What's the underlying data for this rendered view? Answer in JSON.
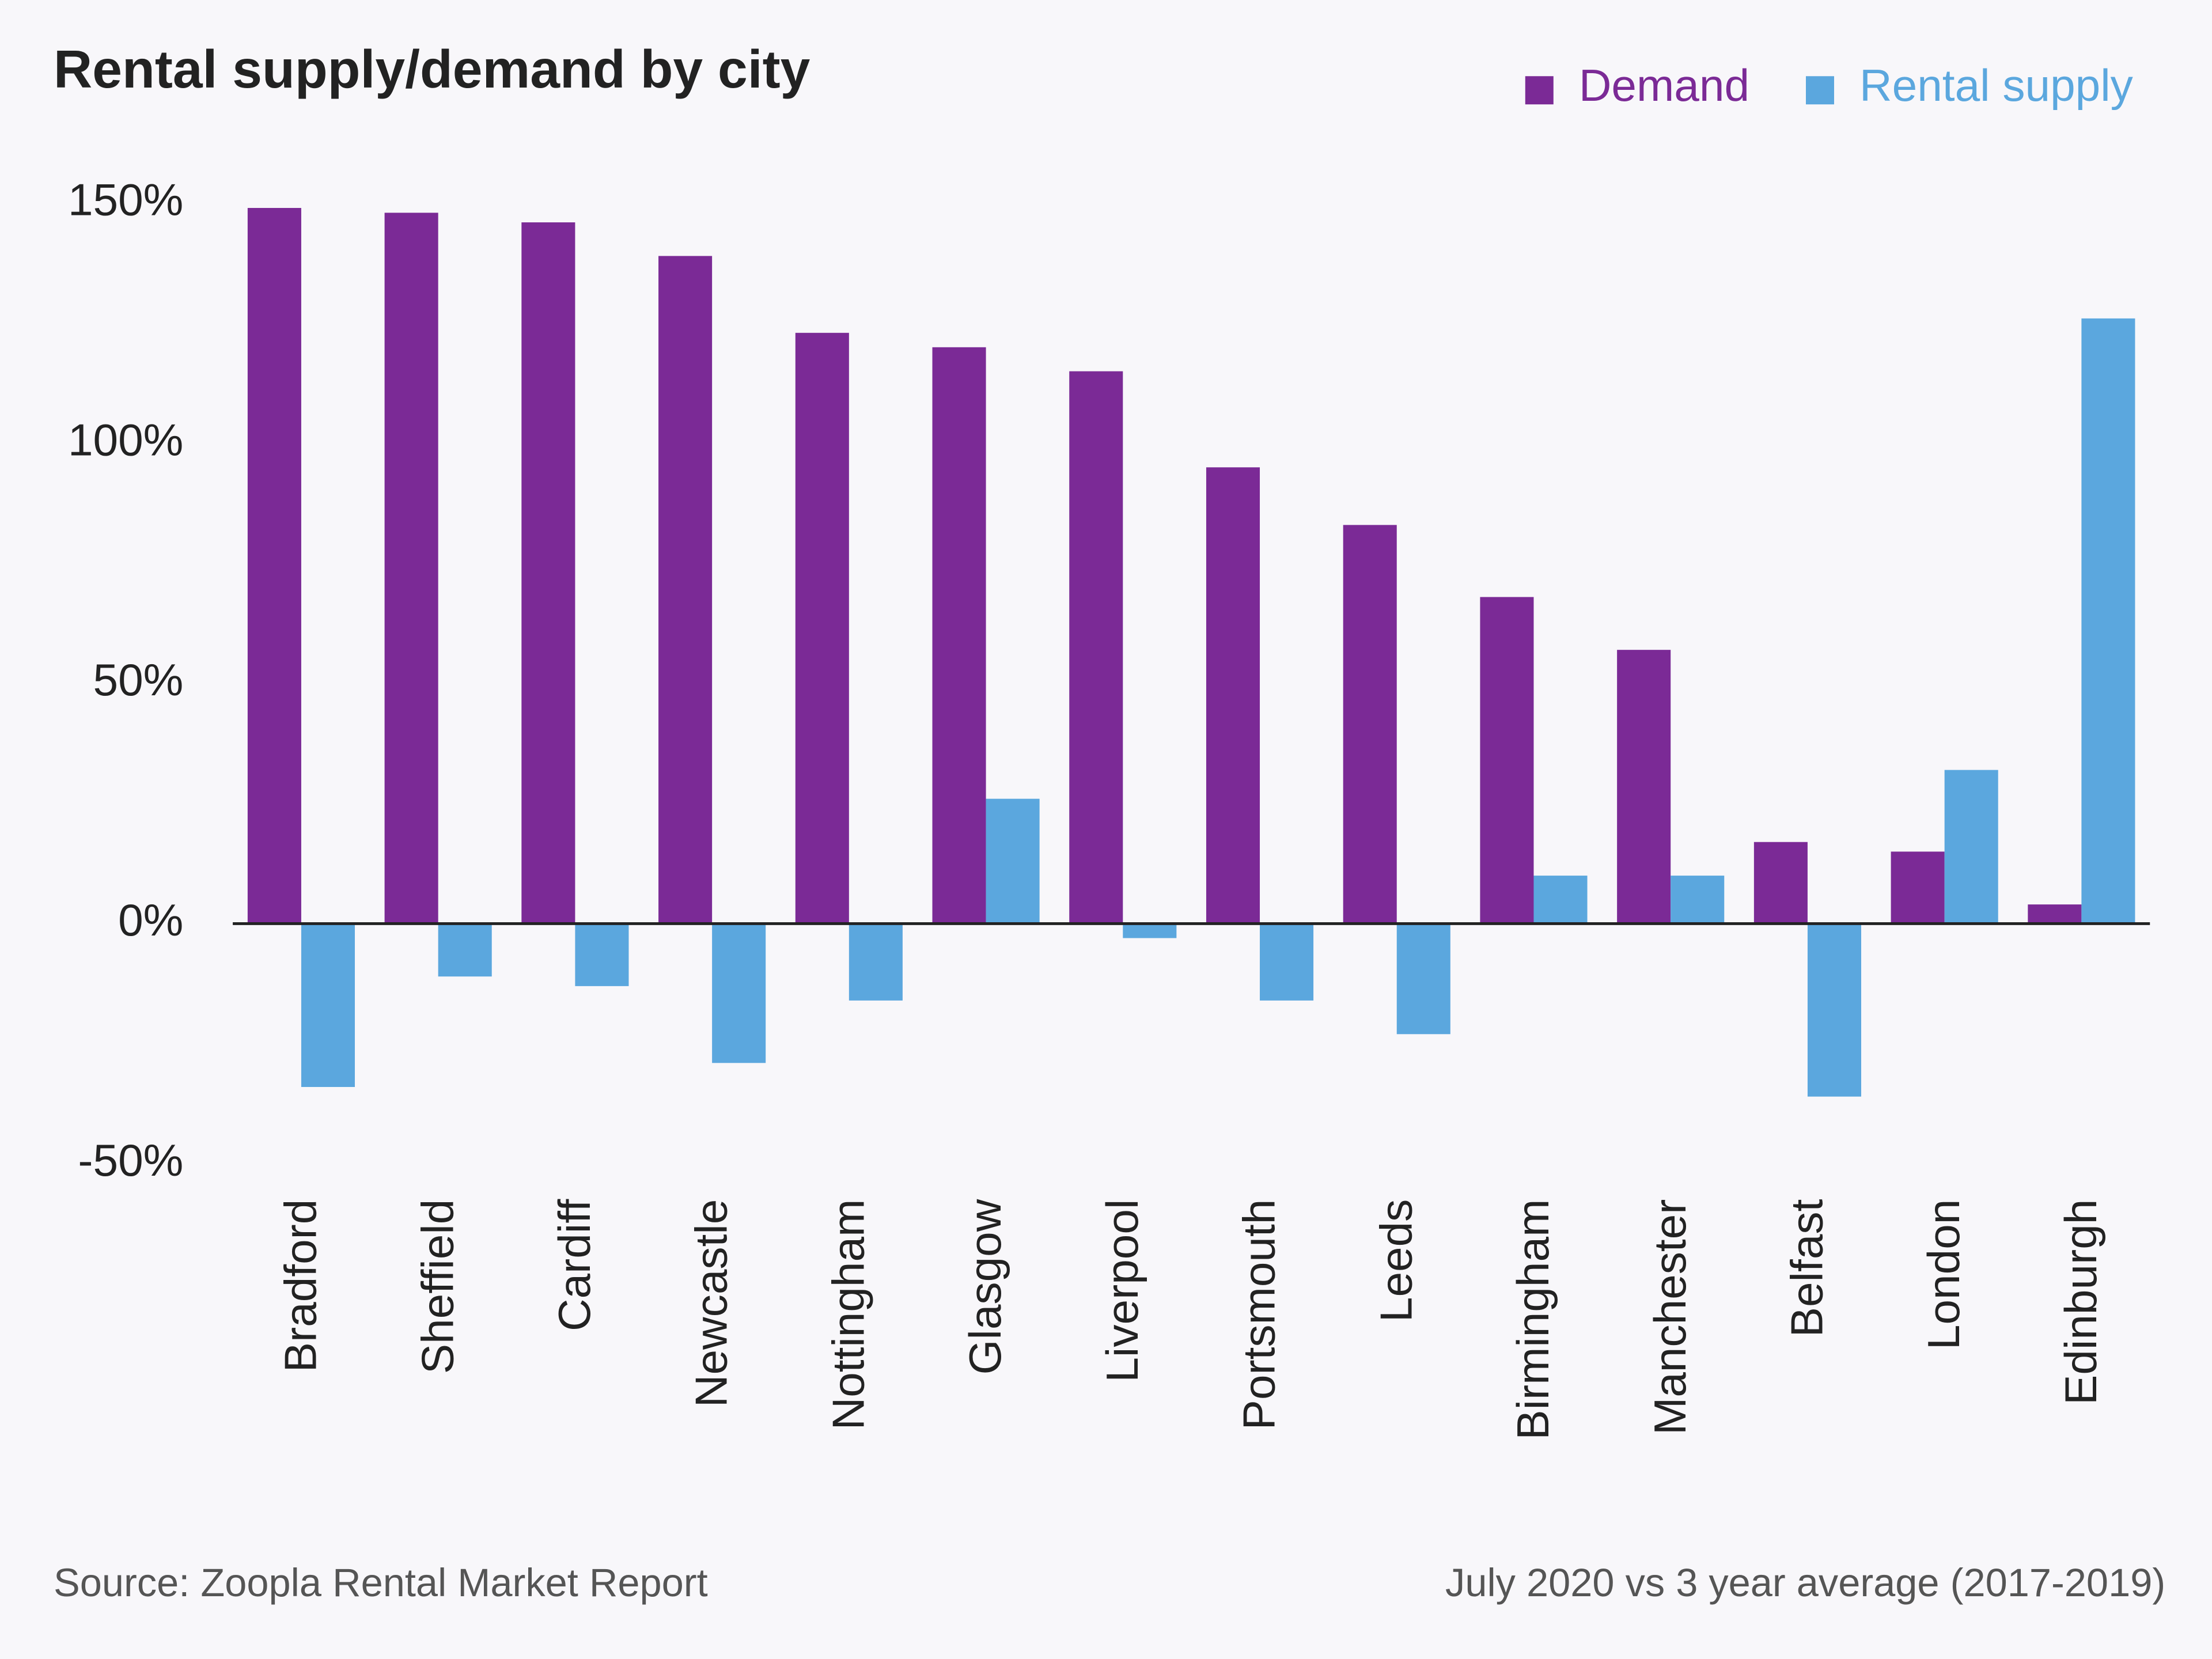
{
  "chart_data": {
    "type": "bar",
    "title": "Rental supply/demand by city",
    "subtitle": "July 2020 vs 3 year average (2017-2019)",
    "source": "Source: Zoopla Rental Market Report",
    "categories": [
      "Bradford",
      "Sheffield",
      "Cardiff",
      "Newcastle",
      "Nottingham",
      "Glasgow",
      "Liverpool",
      "Portsmouth",
      "Leeds",
      "Birmingham",
      "Manchester",
      "Belfast",
      "London",
      "Edinburgh"
    ],
    "series": [
      {
        "name": "Demand",
        "color": "#7b2a96",
        "values": [
          149,
          148,
          146,
          139,
          123,
          120,
          115,
          95,
          83,
          68,
          57,
          17,
          15,
          4
        ]
      },
      {
        "name": "Rental supply",
        "color": "#5ba7de",
        "values": [
          -34,
          -11,
          -13,
          -29,
          -16,
          26,
          -3,
          -16,
          -23,
          10,
          10,
          -36,
          32,
          126
        ]
      }
    ],
    "ylim": [
      -50,
      150
    ],
    "yticks": [
      {
        "value": -50,
        "label": "-50%"
      },
      {
        "value": 0,
        "label": "0%"
      },
      {
        "value": 50,
        "label": "50%"
      },
      {
        "value": 100,
        "label": "100%"
      },
      {
        "value": 150,
        "label": "150%"
      }
    ],
    "grid": false,
    "legend": "top-right"
  }
}
